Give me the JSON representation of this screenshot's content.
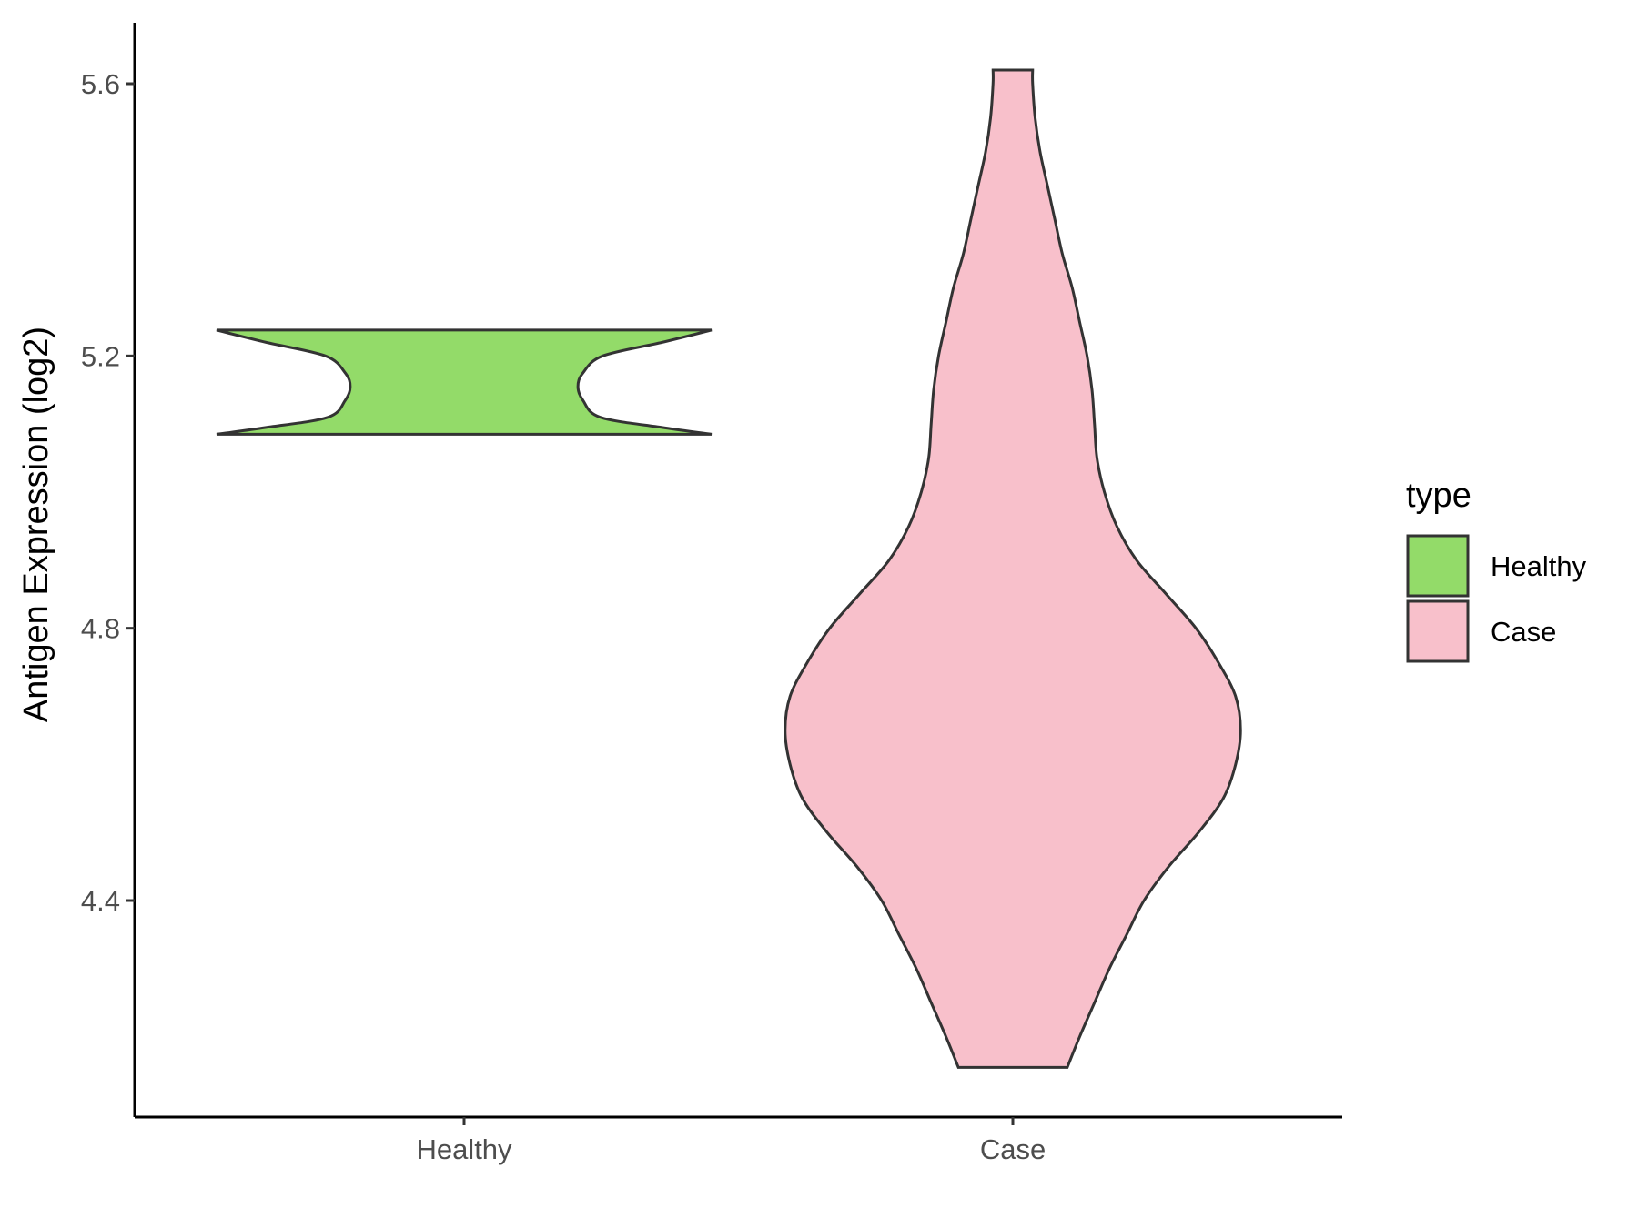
{
  "chart_data": {
    "type": "violin",
    "ylabel": "Antigen Expression (log2)",
    "xlabel": "",
    "categories": [
      "Healthy",
      "Case"
    ],
    "ylim": [
      4.09,
      5.69
    ],
    "yticks": [
      4.4,
      4.8,
      5.2,
      5.6
    ],
    "y_tick_labels": [
      "4.4",
      "4.8",
      "5.2",
      "5.6"
    ],
    "grid": false,
    "legend": {
      "title": "type",
      "position": "right",
      "entries": [
        {
          "label": "Healthy",
          "color": "#93db69"
        },
        {
          "label": "Case",
          "color": "#f8c0cb"
        }
      ]
    },
    "series": [
      {
        "category": "Healthy",
        "color": "#93db69",
        "min": 5.085,
        "max": 5.238,
        "density": [
          [
            5.085,
            1.0
          ],
          [
            5.095,
            0.8
          ],
          [
            5.11,
            0.55
          ],
          [
            5.135,
            0.48
          ],
          [
            5.155,
            0.46
          ],
          [
            5.175,
            0.48
          ],
          [
            5.2,
            0.56
          ],
          [
            5.22,
            0.8
          ],
          [
            5.238,
            1.0
          ]
        ]
      },
      {
        "category": "Case",
        "color": "#f8c0cb",
        "min": 4.155,
        "max": 5.62,
        "density": [
          [
            4.155,
            0.22
          ],
          [
            4.2,
            0.27
          ],
          [
            4.25,
            0.33
          ],
          [
            4.3,
            0.39
          ],
          [
            4.35,
            0.46
          ],
          [
            4.4,
            0.53
          ],
          [
            4.45,
            0.63
          ],
          [
            4.5,
            0.75
          ],
          [
            4.55,
            0.85
          ],
          [
            4.6,
            0.9
          ],
          [
            4.65,
            0.92
          ],
          [
            4.7,
            0.9
          ],
          [
            4.75,
            0.83
          ],
          [
            4.8,
            0.74
          ],
          [
            4.85,
            0.62
          ],
          [
            4.9,
            0.5
          ],
          [
            4.95,
            0.42
          ],
          [
            5.0,
            0.37
          ],
          [
            5.05,
            0.34
          ],
          [
            5.1,
            0.33
          ],
          [
            5.15,
            0.32
          ],
          [
            5.2,
            0.3
          ],
          [
            5.25,
            0.27
          ],
          [
            5.3,
            0.24
          ],
          [
            5.35,
            0.2
          ],
          [
            5.4,
            0.17
          ],
          [
            5.45,
            0.14
          ],
          [
            5.5,
            0.11
          ],
          [
            5.55,
            0.09
          ],
          [
            5.6,
            0.08
          ],
          [
            5.62,
            0.08
          ]
        ]
      }
    ]
  }
}
